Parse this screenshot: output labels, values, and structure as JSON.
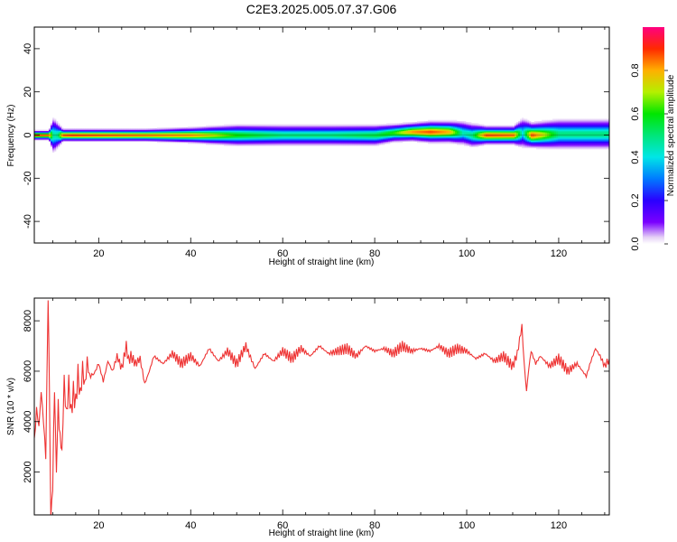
{
  "title": "C2E3.2025.005.07.37.G06",
  "chart_data": [
    {
      "type": "heatmap",
      "xlabel": "Height of straight line (km)",
      "ylabel": "Frequency (Hz)",
      "xlim": [
        6,
        131
      ],
      "ylim": [
        -50,
        50
      ],
      "xticks": [
        20,
        40,
        60,
        80,
        100,
        120
      ],
      "yticks": [
        -40,
        -20,
        0,
        20,
        40
      ],
      "colorbar": {
        "label": "Normalized spectral amplitude",
        "range": [
          0,
          1
        ],
        "ticks": [
          "0.0",
          "0.2",
          "0.4",
          "0.6",
          "0.8"
        ],
        "tick_values": [
          0,
          0.2,
          0.4,
          0.6,
          0.8
        ]
      },
      "ridge": {
        "x": [
          6,
          9,
          10,
          11,
          12,
          14,
          20,
          30,
          40,
          50,
          60,
          70,
          80,
          84,
          88,
          92,
          96,
          99,
          101,
          104,
          110,
          112,
          114,
          120,
          131
        ],
        "peak_amplitude": [
          0.9,
          0.88,
          0.45,
          0.5,
          0.88,
          0.9,
          0.88,
          0.85,
          0.82,
          0.6,
          0.5,
          0.5,
          0.55,
          0.62,
          0.82,
          0.88,
          0.8,
          0.45,
          0.5,
          0.88,
          0.85,
          0.4,
          0.88,
          0.5,
          0.5
        ],
        "halfwidth_hz": [
          1.5,
          1.5,
          6,
          4,
          2,
          2,
          2,
          2,
          2.5,
          3.5,
          3.5,
          3.5,
          3.5,
          3,
          3,
          3.5,
          3.5,
          4,
          4,
          3,
          3,
          5,
          4,
          5,
          5
        ],
        "center_hz": [
          0,
          0,
          0,
          0,
          0,
          0,
          0,
          0,
          0,
          0,
          0,
          0,
          0,
          1,
          1.5,
          1.5,
          1.5,
          1,
          0,
          0,
          0,
          1,
          0,
          0.5,
          0.5
        ]
      }
    },
    {
      "type": "line",
      "xlabel": "Height of straight line (km)",
      "ylabel": "SNR (10 * v/v)",
      "xlim": [
        6,
        131
      ],
      "ylim": [
        300,
        8900
      ],
      "xticks": [
        20,
        40,
        60,
        80,
        100,
        120
      ],
      "yticks": [
        2000,
        4000,
        6000,
        8000
      ],
      "color": "#ee3333",
      "series": [
        {
          "x": [
            6,
            6.5,
            7,
            7.5,
            8,
            8.5,
            9,
            9.3,
            9.6,
            10,
            10.4,
            10.8,
            11.2,
            11.6,
            12,
            12.5,
            13,
            13.5,
            14,
            14.5,
            15,
            15.5,
            16,
            16.5,
            17,
            17.5,
            18,
            19,
            20,
            21,
            22,
            23,
            24,
            25,
            26,
            26.5,
            27,
            28,
            29,
            30,
            31,
            32,
            34,
            36,
            38,
            40,
            42,
            44,
            46,
            48,
            50,
            52,
            54,
            56,
            58,
            60,
            62,
            64,
            66,
            68,
            70,
            72,
            74,
            76,
            78,
            80,
            82,
            84,
            86,
            88,
            90,
            92,
            94,
            96,
            98,
            100,
            102,
            104,
            106,
            108,
            110,
            111,
            112,
            112.5,
            113,
            113.5,
            114,
            115,
            116,
            118,
            120,
            122,
            124,
            126,
            127,
            128,
            129,
            130,
            131
          ],
          "y": [
            3200,
            4500,
            3800,
            5200,
            4000,
            2600,
            8900,
            5000,
            300,
            1300,
            5500,
            2000,
            4600,
            3500,
            2700,
            5600,
            4200,
            5500,
            4300,
            5200,
            4700,
            5900,
            5000,
            6100,
            5400,
            6400,
            5800,
            5900,
            6300,
            5600,
            6400,
            6000,
            6600,
            6100,
            7000,
            6400,
            6600,
            6300,
            6500,
            5500,
            6000,
            6600,
            6300,
            6700,
            6300,
            6600,
            6200,
            6900,
            6400,
            6800,
            6300,
            7000,
            6100,
            6700,
            6400,
            6800,
            6500,
            6900,
            6600,
            7000,
            6700,
            6800,
            6900,
            6600,
            7000,
            6800,
            6900,
            6700,
            7000,
            6800,
            6900,
            6800,
            7000,
            6700,
            6900,
            6800,
            6500,
            6700,
            6400,
            6600,
            6200,
            6700,
            7800,
            6300,
            5200,
            6100,
            6800,
            6300,
            6600,
            6200,
            6500,
            6000,
            6300,
            5800,
            6400,
            6900,
            6600,
            6200,
            6500
          ]
        }
      ]
    }
  ]
}
